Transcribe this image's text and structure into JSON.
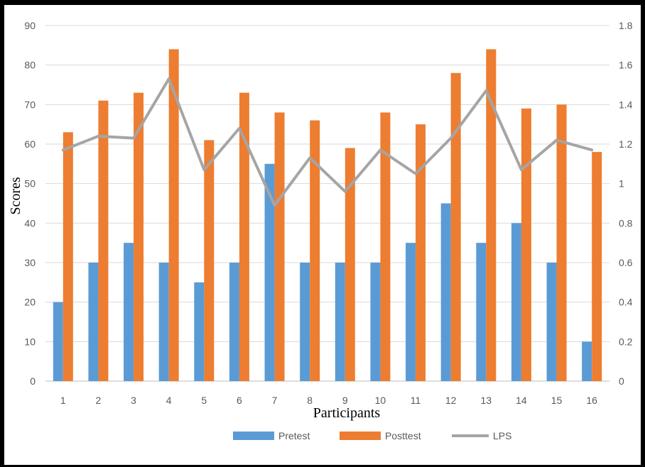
{
  "chart_data": {
    "type": "bar",
    "xlabel": "Participants",
    "ylabel": "Scores",
    "categories": [
      "1",
      "2",
      "3",
      "4",
      "5",
      "6",
      "7",
      "8",
      "9",
      "10",
      "11",
      "12",
      "13",
      "14",
      "15",
      "16"
    ],
    "ylim": [
      0,
      90
    ],
    "y_ticks": [
      "0",
      "10",
      "20",
      "30",
      "40",
      "50",
      "60",
      "70",
      "80",
      "90"
    ],
    "y2lim": [
      0,
      1.8
    ],
    "y2_ticks": [
      "0",
      "0.2",
      "0.4",
      "0.6",
      "0.8",
      "1",
      "1.2",
      "1.4",
      "1.6",
      "1.8"
    ],
    "grid": true,
    "legend_position": "bottom",
    "series": [
      {
        "name": "Pretest",
        "type": "bar",
        "axis": "left",
        "color": "#5B9BD5",
        "values": [
          20,
          30,
          35,
          30,
          25,
          30,
          55,
          30,
          30,
          30,
          35,
          45,
          35,
          40,
          30,
          10
        ]
      },
      {
        "name": "Posttest",
        "type": "bar",
        "axis": "left",
        "color": "#ED7D31",
        "values": [
          63,
          71,
          73,
          84,
          61,
          73,
          68,
          66,
          59,
          68,
          65,
          78,
          84,
          69,
          70,
          58
        ]
      },
      {
        "name": "LPS",
        "type": "line",
        "axis": "right",
        "color": "#A5A5A5",
        "values": [
          1.17,
          1.24,
          1.23,
          1.53,
          1.07,
          1.28,
          0.89,
          1.13,
          0.96,
          1.17,
          1.05,
          1.23,
          1.47,
          1.07,
          1.22,
          1.17
        ]
      }
    ]
  }
}
